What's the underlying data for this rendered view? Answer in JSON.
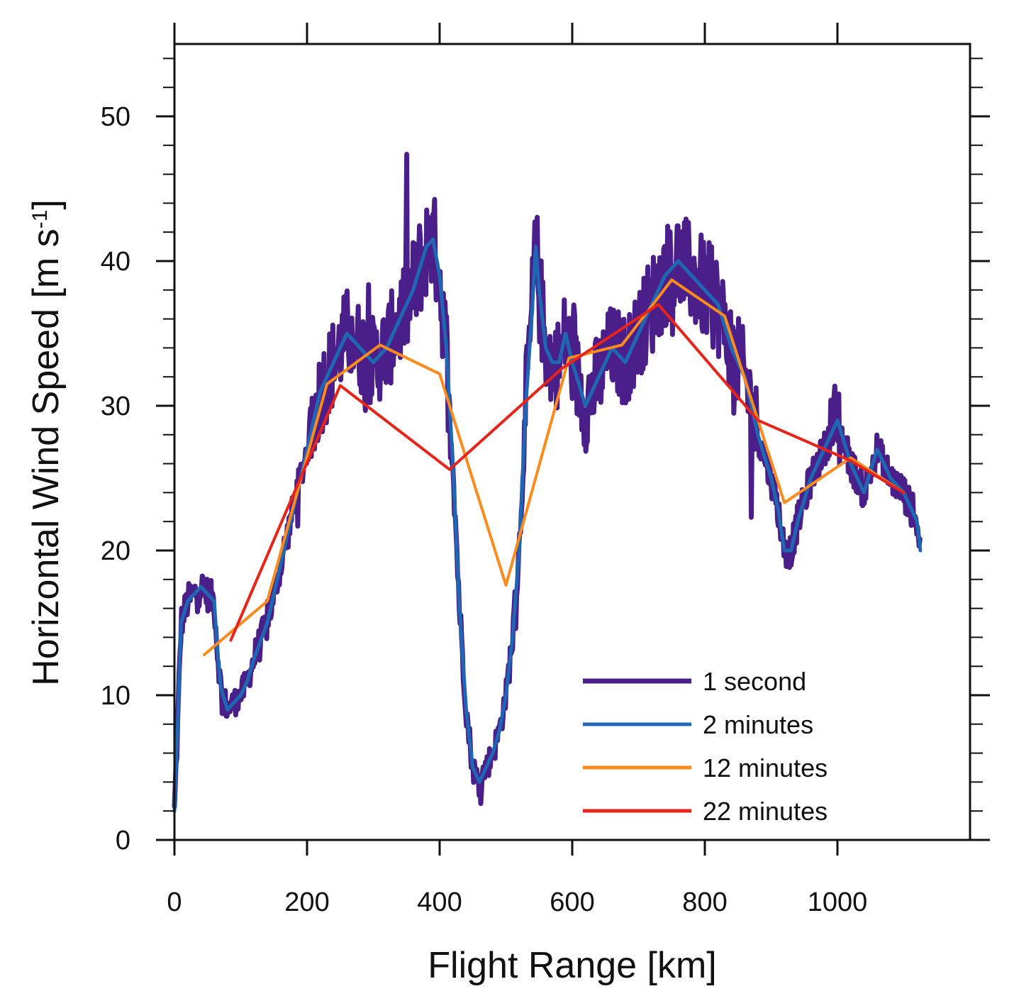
{
  "chart_data": {
    "type": "line",
    "xlabel": "Flight Range [km]",
    "ylabel": {
      "main": "Horizontal Wind Speed [m s",
      "sup": "-1",
      "close": "]"
    },
    "xlim": [
      0,
      1200
    ],
    "ylim": [
      0,
      55
    ],
    "x_ticks": [
      0,
      200,
      400,
      600,
      800,
      1000
    ],
    "x_tick_labels": [
      "0",
      "200",
      "400",
      "600",
      "800",
      "1000"
    ],
    "y_ticks": [
      0,
      10,
      20,
      30,
      40,
      50
    ],
    "y_tick_labels": [
      "0",
      "10",
      "20",
      "30",
      "40",
      "50"
    ],
    "legend_position": "bottom-right",
    "series": [
      {
        "name": "1 second",
        "color": "#4b1f8a",
        "width": 7,
        "noise": true,
        "x": [
          0,
          5,
          10,
          20,
          30,
          40,
          50,
          60,
          65,
          70,
          80,
          90,
          100,
          110,
          120,
          140,
          160,
          180,
          200,
          220,
          240,
          260,
          280,
          300,
          320,
          340,
          360,
          380,
          390,
          400,
          410,
          420,
          430,
          440,
          450,
          460,
          470,
          480,
          490,
          500,
          510,
          520,
          530,
          540,
          545,
          550,
          560,
          570,
          580,
          590,
          600,
          620,
          640,
          660,
          680,
          700,
          720,
          740,
          760,
          780,
          800,
          820,
          840,
          860,
          880,
          900,
          910,
          920,
          930,
          940,
          960,
          980,
          1000,
          1020,
          1040,
          1060,
          1080,
          1100,
          1120,
          1125
        ],
        "y": [
          2,
          8,
          15,
          16.5,
          17,
          17.5,
          17,
          16.5,
          13,
          10.5,
          9,
          9.5,
          10,
          11,
          12.5,
          15,
          19,
          23,
          27,
          31,
          33,
          35,
          34,
          33,
          34,
          36,
          38,
          41,
          41.5,
          39,
          34,
          26,
          16,
          9,
          5,
          4,
          5,
          6,
          7.5,
          10,
          14,
          20,
          30,
          37,
          41,
          38,
          34,
          33,
          33,
          35,
          33,
          30,
          32,
          34,
          33,
          35,
          37,
          39,
          40,
          39,
          38,
          37,
          34,
          32,
          28,
          25,
          23,
          20,
          20,
          22,
          25,
          27,
          29,
          26,
          24,
          27,
          25,
          24,
          22,
          20
        ]
      },
      {
        "name": "2 minutes",
        "color": "#1f66b3",
        "width": 5,
        "noise": false,
        "x": [
          0,
          5,
          10,
          20,
          30,
          40,
          50,
          60,
          65,
          70,
          80,
          90,
          100,
          110,
          120,
          140,
          160,
          180,
          200,
          220,
          240,
          260,
          280,
          300,
          320,
          340,
          360,
          380,
          390,
          400,
          410,
          420,
          430,
          440,
          450,
          460,
          470,
          480,
          490,
          500,
          510,
          520,
          530,
          540,
          545,
          550,
          560,
          570,
          580,
          590,
          600,
          620,
          640,
          660,
          680,
          700,
          720,
          740,
          760,
          780,
          800,
          820,
          840,
          860,
          880,
          900,
          910,
          920,
          930,
          940,
          960,
          980,
          1000,
          1020,
          1040,
          1060,
          1080,
          1100,
          1120,
          1125
        ],
        "y": [
          2,
          8,
          15,
          16.5,
          17,
          17.5,
          17,
          16.5,
          13,
          10.5,
          9,
          9.5,
          10,
          11,
          12.5,
          15,
          19,
          23,
          27,
          31,
          33,
          35,
          34,
          33,
          34,
          36,
          38,
          41,
          41.5,
          39,
          34,
          26,
          16,
          9,
          5,
          4,
          5,
          6,
          7.5,
          10,
          14,
          20,
          30,
          37,
          41,
          38,
          34,
          33,
          33,
          35,
          33,
          30,
          32,
          34,
          33,
          35,
          37,
          39,
          40,
          39,
          38,
          37,
          34,
          32,
          28,
          25,
          23,
          20,
          20,
          22,
          25,
          27,
          29,
          26,
          24,
          27,
          25,
          24,
          22,
          20
        ]
      },
      {
        "name": "12 minutes",
        "color": "#ff8a1e",
        "width": 4,
        "noise": false,
        "x": [
          45,
          140,
          230,
          310,
          400,
          500,
          595,
          675,
          750,
          830,
          920,
          1020,
          1100
        ],
        "y": [
          12.8,
          16.5,
          31.5,
          34.2,
          32.2,
          17.6,
          33.3,
          34.2,
          38.7,
          36.2,
          23.3,
          26.4,
          24.0
        ],
        "smooth": false
      },
      {
        "name": "22 minutes",
        "color": "#e8231a",
        "width": 4,
        "noise": false,
        "x": [
          85,
          250,
          415,
          585,
          730,
          880,
          1020,
          1100
        ],
        "y": [
          13.8,
          31.4,
          25.6,
          32.6,
          37.0,
          29.0,
          26.2,
          24.0
        ],
        "smooth": false
      }
    ]
  }
}
